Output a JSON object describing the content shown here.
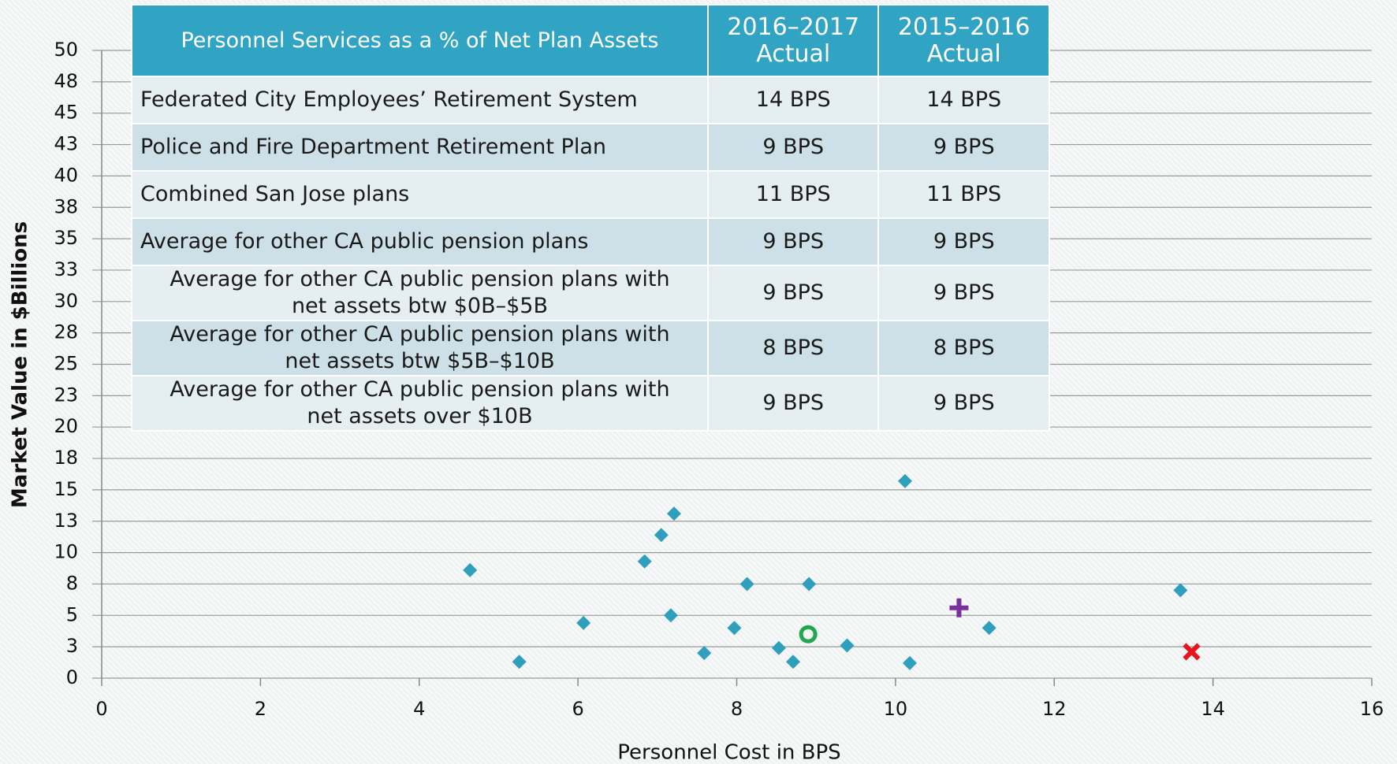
{
  "chart_data": {
    "type": "scatter",
    "xlabel": "Personnel Cost in BPS",
    "ylabel": "Market Value in $Billions",
    "xlim": [
      0,
      16
    ],
    "xticks": [
      0,
      2,
      4,
      6,
      8,
      10,
      12,
      14,
      16
    ],
    "ylim": [
      0,
      50
    ],
    "yticks": [
      0,
      {
        "value": 2.5,
        "label": "3"
      },
      5,
      {
        "value": 7.5,
        "label": "8"
      },
      10,
      {
        "value": 12.5,
        "label": "13"
      },
      15,
      {
        "value": 17.5,
        "label": "18"
      },
      20,
      {
        "value": 22.5,
        "label": "23"
      },
      25,
      {
        "value": 27.5,
        "label": "28"
      },
      30,
      {
        "value": 32.5,
        "label": "33"
      },
      35,
      {
        "value": 37.5,
        "label": "38"
      },
      40,
      {
        "value": 42.5,
        "label": "43"
      },
      45,
      {
        "value": 47.5,
        "label": "48"
      },
      50
    ],
    "grid": true,
    "series": [
      {
        "color": "#2e9fbd",
        "marker": "diamond",
        "x": [
          4.64,
          5.26,
          6.07,
          6.84,
          7.05,
          7.21,
          7.17,
          7.59,
          7.97,
          8.13,
          8.53,
          8.71,
          8.91,
          9.39,
          10.12,
          10.18,
          11.18,
          13.59
        ],
        "values": [
          8.6,
          1.3,
          4.4,
          9.3,
          11.4,
          13.1,
          5.0,
          2.0,
          4.0,
          7.5,
          2.4,
          1.3,
          7.5,
          2.6,
          15.7,
          1.2,
          4.0,
          7.0
        ]
      },
      {
        "color": "#1fa84f",
        "marker": "circle",
        "x": [
          8.9
        ],
        "values": [
          3.5
        ]
      },
      {
        "color": "#7a2f9e",
        "marker": "plus",
        "x": [
          10.8
        ],
        "values": [
          5.6
        ]
      },
      {
        "color": "#e8141b",
        "marker": "cross",
        "x": [
          13.73
        ],
        "values": [
          2.1
        ]
      }
    ]
  },
  "table": {
    "header": [
      "Personnel Services as a % of Net Plan Assets",
      "2016–2017 Actual",
      "2015–2016 Actual"
    ],
    "rows": [
      [
        "Federated City Employees’ Retirement System",
        "14 BPS",
        "14 BPS"
      ],
      [
        "Police and Fire Department Retirement Plan",
        "9 BPS",
        "9 BPS"
      ],
      [
        "Combined San Jose plans",
        "11 BPS",
        "11 BPS"
      ],
      [
        "Average for other CA public pension plans",
        "9 BPS",
        "9 BPS"
      ],
      [
        "Average for other CA public pension plans with net assets btw $0B–$5B",
        "9 BPS",
        "9 BPS"
      ],
      [
        "Average for other CA public pension plans with net assets btw $5B–$10B",
        "8 BPS",
        "8 BPS"
      ],
      [
        "Average for other CA public pension plans with net assets over $10B",
        "9 BPS",
        "9 BPS"
      ]
    ]
  }
}
